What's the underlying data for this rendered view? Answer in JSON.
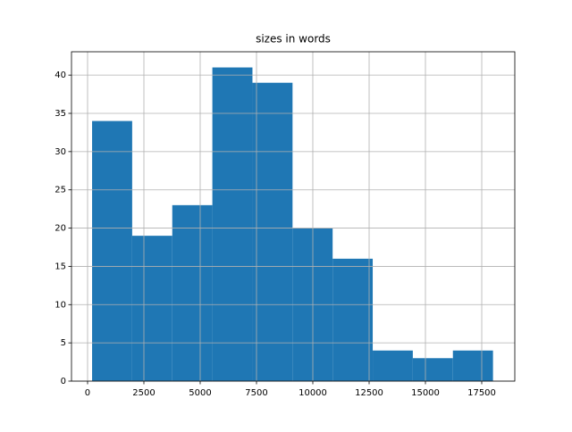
{
  "chart_data": {
    "type": "histogram",
    "title": "sizes in words",
    "bins": [
      200,
      1980,
      3760,
      5540,
      7320,
      9100,
      10880,
      12660,
      14440,
      16220,
      18000
    ],
    "counts": [
      34,
      19,
      23,
      41,
      39,
      20,
      16,
      4,
      3,
      4
    ],
    "color": "#1f77b4",
    "xlim": [
      -714,
      18968
    ],
    "xticks": [
      0,
      2500,
      5000,
      7500,
      10000,
      12500,
      15000,
      17500
    ],
    "ylim": [
      0,
      43.05
    ],
    "yticks": [
      0,
      5,
      10,
      15,
      20,
      25,
      30,
      35,
      40
    ],
    "grid": true
  }
}
